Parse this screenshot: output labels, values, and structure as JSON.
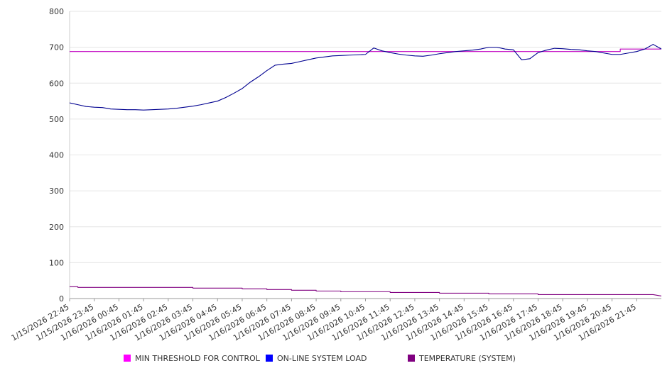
{
  "chart_data": {
    "type": "line",
    "ylim": [
      0,
      800
    ],
    "yticks": [
      0,
      100,
      200,
      300,
      400,
      500,
      600,
      700,
      800
    ],
    "grid": true,
    "legend_placement": "bottom",
    "x_tick_labels": [
      "1/15/2026 22:45",
      "1/15/2026 23:45",
      "1/16/2026 00:45",
      "1/16/2026 01:45",
      "1/16/2026 02:45",
      "1/16/2026 03:45",
      "1/16/2026 04:45",
      "1/16/2026 05:45",
      "1/16/2026 06:45",
      "1/16/2026 07:45",
      "1/16/2026 08:45",
      "1/16/2026 09:45",
      "1/16/2026 10:45",
      "1/16/2026 11:45",
      "1/16/2026 12:45",
      "1/16/2026 13:45",
      "1/16/2026 14:45",
      "1/16/2026 15:45",
      "1/16/2026 16:45",
      "1/16/2026 17:45",
      "1/16/2026 18:45",
      "1/16/2026 19:45",
      "1/16/2026 20:45",
      "1/16/2026 21:45"
    ],
    "x_start": "1/15/2026 22:45",
    "x_end": "1/16/2026 22:45",
    "series": [
      {
        "name": "MIN THRESHOLD FOR CONTROL",
        "color": "#ff00ff",
        "line_color": "#c000c0",
        "points": [
          [
            "1/15/2026 22:45",
            688
          ],
          [
            "1/16/2026 21:05",
            688
          ],
          [
            "1/16/2026 21:05",
            695
          ],
          [
            "1/16/2026 22:45",
            695
          ]
        ]
      },
      {
        "name": "ON-LINE SYSTEM LOAD",
        "color": "#0000ff",
        "line_color": "#000090",
        "points": [
          [
            "1/15/2026 22:45",
            545
          ],
          [
            "1/15/2026 23:05",
            540
          ],
          [
            "1/15/2026 23:25",
            535
          ],
          [
            "1/15/2026 23:45",
            533
          ],
          [
            "1/16/2026 00:05",
            532
          ],
          [
            "1/16/2026 00:25",
            528
          ],
          [
            "1/16/2026 00:45",
            527
          ],
          [
            "1/16/2026 01:05",
            526
          ],
          [
            "1/16/2026 01:25",
            526
          ],
          [
            "1/16/2026 01:45",
            525
          ],
          [
            "1/16/2026 02:05",
            526
          ],
          [
            "1/16/2026 02:25",
            527
          ],
          [
            "1/16/2026 02:45",
            528
          ],
          [
            "1/16/2026 03:05",
            530
          ],
          [
            "1/16/2026 03:25",
            533
          ],
          [
            "1/16/2026 03:45",
            536
          ],
          [
            "1/16/2026 04:05",
            540
          ],
          [
            "1/16/2026 04:25",
            545
          ],
          [
            "1/16/2026 04:45",
            550
          ],
          [
            "1/16/2026 05:05",
            560
          ],
          [
            "1/16/2026 05:25",
            572
          ],
          [
            "1/16/2026 05:45",
            585
          ],
          [
            "1/16/2026 06:05",
            603
          ],
          [
            "1/16/2026 06:25",
            618
          ],
          [
            "1/16/2026 06:45",
            635
          ],
          [
            "1/16/2026 07:05",
            650
          ],
          [
            "1/16/2026 07:25",
            653
          ],
          [
            "1/16/2026 07:45",
            655
          ],
          [
            "1/16/2026 08:05",
            660
          ],
          [
            "1/16/2026 08:25",
            665
          ],
          [
            "1/16/2026 08:45",
            670
          ],
          [
            "1/16/2026 09:05",
            673
          ],
          [
            "1/16/2026 09:25",
            676
          ],
          [
            "1/16/2026 09:45",
            677
          ],
          [
            "1/16/2026 10:05",
            678
          ],
          [
            "1/16/2026 10:25",
            679
          ],
          [
            "1/16/2026 10:45",
            680
          ],
          [
            "1/16/2026 11:05",
            698
          ],
          [
            "1/16/2026 11:25",
            690
          ],
          [
            "1/16/2026 11:45",
            685
          ],
          [
            "1/16/2026 12:05",
            681
          ],
          [
            "1/16/2026 12:25",
            678
          ],
          [
            "1/16/2026 12:45",
            676
          ],
          [
            "1/16/2026 13:05",
            675
          ],
          [
            "1/16/2026 13:25",
            678
          ],
          [
            "1/16/2026 13:45",
            682
          ],
          [
            "1/16/2026 14:05",
            685
          ],
          [
            "1/16/2026 14:25",
            688
          ],
          [
            "1/16/2026 14:45",
            690
          ],
          [
            "1/16/2026 15:05",
            692
          ],
          [
            "1/16/2026 15:25",
            695
          ],
          [
            "1/16/2026 15:45",
            700
          ],
          [
            "1/16/2026 16:05",
            700
          ],
          [
            "1/16/2026 16:25",
            695
          ],
          [
            "1/16/2026 16:45",
            693
          ],
          [
            "1/16/2026 17:05",
            665
          ],
          [
            "1/16/2026 17:25",
            668
          ],
          [
            "1/16/2026 17:45",
            685
          ],
          [
            "1/16/2026 18:05",
            692
          ],
          [
            "1/16/2026 18:25",
            697
          ],
          [
            "1/16/2026 18:45",
            696
          ],
          [
            "1/16/2026 19:05",
            694
          ],
          [
            "1/16/2026 19:25",
            693
          ],
          [
            "1/16/2026 19:45",
            690
          ],
          [
            "1/16/2026 20:05",
            688
          ],
          [
            "1/16/2026 20:25",
            684
          ],
          [
            "1/16/2026 20:45",
            680
          ],
          [
            "1/16/2026 21:05",
            680
          ],
          [
            "1/16/2026 21:25",
            684
          ],
          [
            "1/16/2026 21:45",
            688
          ],
          [
            "1/16/2026 22:05",
            695
          ],
          [
            "1/16/2026 22:25",
            708
          ],
          [
            "1/16/2026 22:45",
            695
          ]
        ]
      },
      {
        "name": "TEMPERATURE (SYSTEM)",
        "color": "#800080",
        "line_color": "#800080",
        "points": [
          [
            "1/15/2026 22:45",
            33
          ],
          [
            "1/15/2026 23:05",
            33
          ],
          [
            "1/15/2026 23:05",
            31
          ],
          [
            "1/16/2026 03:45",
            31
          ],
          [
            "1/16/2026 03:45",
            29
          ],
          [
            "1/16/2026 05:45",
            29
          ],
          [
            "1/16/2026 05:45",
            27
          ],
          [
            "1/16/2026 06:45",
            27
          ],
          [
            "1/16/2026 06:45",
            25
          ],
          [
            "1/16/2026 07:45",
            25
          ],
          [
            "1/16/2026 07:45",
            23
          ],
          [
            "1/16/2026 08:45",
            23
          ],
          [
            "1/16/2026 08:45",
            21
          ],
          [
            "1/16/2026 09:45",
            21
          ],
          [
            "1/16/2026 09:45",
            19
          ],
          [
            "1/16/2026 11:45",
            19
          ],
          [
            "1/16/2026 11:45",
            17
          ],
          [
            "1/16/2026 13:45",
            17
          ],
          [
            "1/16/2026 13:45",
            15
          ],
          [
            "1/16/2026 15:45",
            15
          ],
          [
            "1/16/2026 15:45",
            13
          ],
          [
            "1/16/2026 17:45",
            13
          ],
          [
            "1/16/2026 17:45",
            11
          ],
          [
            "1/16/2026 22:25",
            11
          ],
          [
            "1/16/2026 22:45",
            7
          ]
        ]
      }
    ]
  }
}
